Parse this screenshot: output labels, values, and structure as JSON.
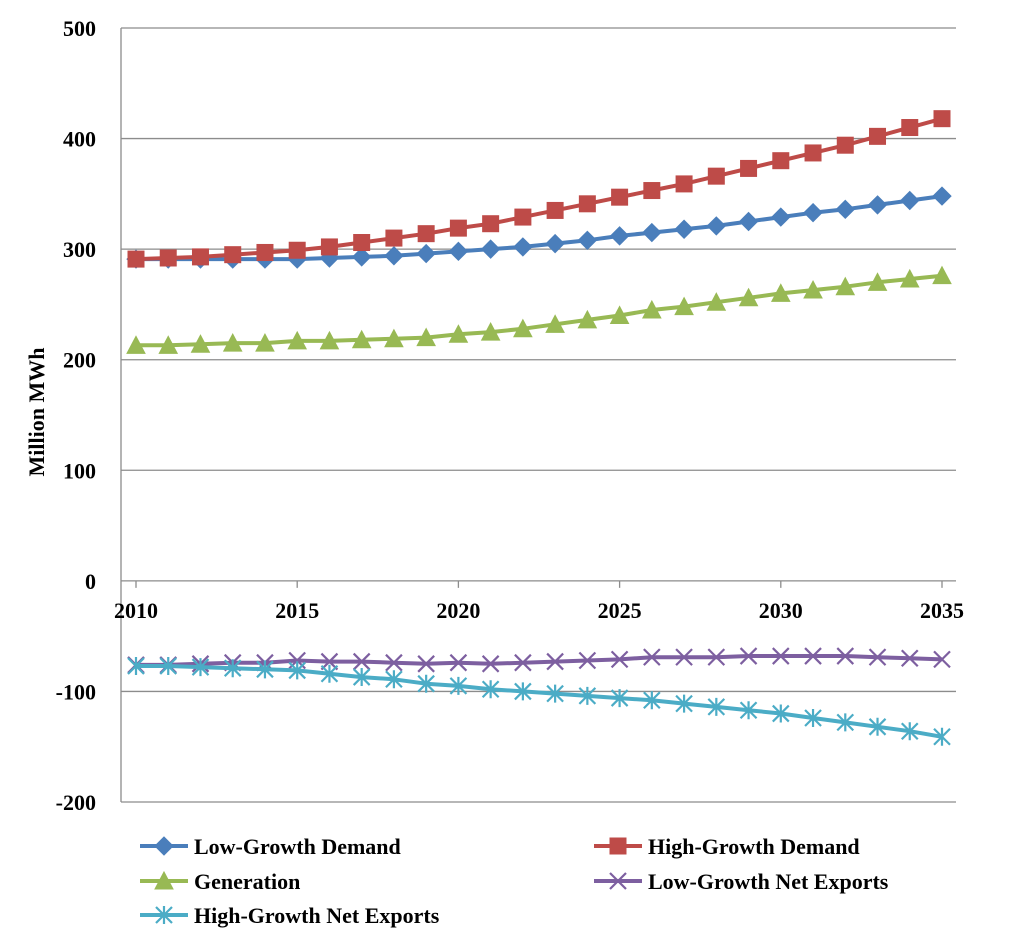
{
  "chart_data": {
    "type": "line",
    "title": "",
    "xlabel": "",
    "ylabel": "Million MWh",
    "ylim": [
      -200,
      500
    ],
    "xlim": [
      2010,
      2036
    ],
    "yticks": [
      500,
      400,
      300,
      200,
      100,
      0,
      -100,
      -200
    ],
    "xticks": [
      2010,
      2015,
      2020,
      2025,
      2030,
      2035
    ],
    "grid": true,
    "legend_position": "bottom",
    "x": [
      2010,
      2011,
      2012,
      2013,
      2014,
      2015,
      2016,
      2017,
      2018,
      2019,
      2020,
      2021,
      2022,
      2023,
      2024,
      2025,
      2026,
      2027,
      2028,
      2029,
      2030,
      2031,
      2032,
      2033,
      2034,
      2035
    ],
    "series": [
      {
        "name": "Low-Growth Demand",
        "color": "#4A7EBB",
        "marker": "diamond",
        "values": [
          291,
          291,
          291,
          291,
          291,
          291,
          292,
          293,
          294,
          296,
          298,
          300,
          302,
          305,
          308,
          312,
          315,
          318,
          321,
          325,
          329,
          333,
          336,
          340,
          344,
          348
        ]
      },
      {
        "name": "High-Growth Demand",
        "color": "#BE4B48",
        "marker": "square",
        "values": [
          291,
          292,
          293,
          295,
          297,
          299,
          302,
          306,
          310,
          314,
          319,
          323,
          329,
          335,
          341,
          347,
          353,
          359,
          366,
          373,
          380,
          387,
          394,
          402,
          410,
          418
        ]
      },
      {
        "name": "Generation",
        "color": "#98B954",
        "marker": "triangle",
        "values": [
          213,
          213,
          214,
          215,
          215,
          217,
          217,
          218,
          219,
          220,
          223,
          225,
          228,
          232,
          236,
          240,
          245,
          248,
          252,
          256,
          260,
          263,
          266,
          270,
          273,
          276
        ]
      },
      {
        "name": "Low-Growth Net Exports",
        "color": "#7D5FA0",
        "marker": "x",
        "values": [
          -76,
          -76,
          -75,
          -74,
          -74,
          -72,
          -73,
          -73,
          -74,
          -75,
          -74,
          -75,
          -74,
          -73,
          -72,
          -71,
          -69,
          -69,
          -69,
          -68,
          -68,
          -68,
          -68,
          -69,
          -70,
          -71
        ]
      },
      {
        "name": "High-Growth Net Exports",
        "color": "#4BACC6",
        "marker": "star",
        "values": [
          -77,
          -77,
          -78,
          -79,
          -80,
          -81,
          -84,
          -87,
          -89,
          -93,
          -95,
          -98,
          -100,
          -102,
          -104,
          -106,
          -108,
          -111,
          -114,
          -117,
          -120,
          -124,
          -128,
          -132,
          -136,
          -141
        ]
      }
    ]
  }
}
